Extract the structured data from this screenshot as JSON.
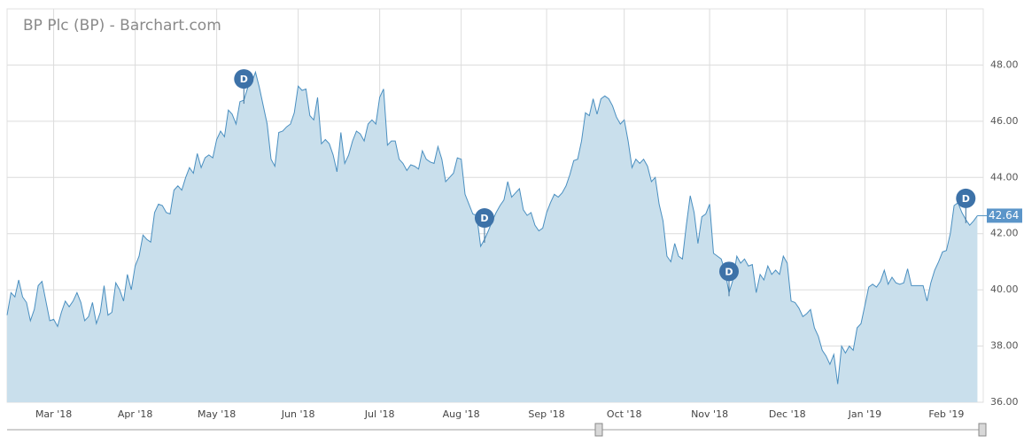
{
  "chart_data": {
    "type": "area",
    "title": "BP Plc (BP) - Barchart.com",
    "values": [
      39.1,
      39.9,
      39.75,
      40.35,
      39.75,
      39.55,
      38.9,
      39.3,
      40.15,
      40.3,
      39.6,
      38.9,
      38.95,
      38.7,
      39.2,
      39.6,
      39.4,
      39.6,
      39.9,
      39.55,
      38.9,
      39.05,
      39.55,
      38.8,
      39.2,
      40.15,
      39.1,
      39.2,
      40.25,
      40.0,
      39.6,
      40.55,
      40.0,
      40.85,
      41.2,
      41.95,
      41.8,
      41.7,
      42.75,
      43.05,
      43.0,
      42.75,
      42.7,
      43.55,
      43.7,
      43.55,
      44.0,
      44.35,
      44.15,
      44.85,
      44.35,
      44.7,
      44.8,
      44.7,
      45.35,
      45.65,
      45.45,
      46.4,
      46.25,
      45.9,
      46.7,
      46.75,
      47.2,
      47.35,
      47.75,
      47.2,
      46.55,
      45.9,
      44.65,
      44.4,
      45.6,
      45.65,
      45.8,
      45.9,
      46.3,
      47.25,
      47.1,
      47.15,
      46.2,
      46.05,
      46.85,
      45.2,
      45.35,
      45.2,
      44.8,
      44.2,
      45.6,
      44.5,
      44.8,
      45.3,
      45.65,
      45.55,
      45.3,
      45.9,
      46.05,
      45.9,
      46.85,
      47.15,
      45.15,
      45.3,
      45.3,
      44.65,
      44.5,
      44.25,
      44.45,
      44.4,
      44.3,
      44.95,
      44.65,
      44.55,
      44.5,
      45.1,
      44.65,
      43.85,
      44.0,
      44.15,
      44.7,
      44.65,
      43.4,
      43.05,
      42.7,
      42.65,
      41.55,
      41.8,
      42.1,
      42.45,
      42.75,
      43.0,
      43.2,
      43.85,
      43.3,
      43.45,
      43.6,
      42.85,
      42.65,
      42.75,
      42.3,
      42.1,
      42.2,
      42.75,
      43.1,
      43.4,
      43.3,
      43.45,
      43.7,
      44.1,
      44.6,
      44.65,
      45.3,
      46.3,
      46.2,
      46.8,
      46.25,
      46.8,
      46.9,
      46.8,
      46.55,
      46.15,
      45.9,
      46.05,
      45.3,
      44.35,
      44.65,
      44.5,
      44.65,
      44.4,
      43.85,
      44.0,
      43.05,
      42.45,
      41.2,
      41.0,
      41.65,
      41.2,
      41.1,
      42.3,
      43.35,
      42.75,
      41.65,
      42.6,
      42.7,
      43.05,
      41.3,
      41.2,
      41.1,
      40.65,
      39.9,
      40.35,
      41.2,
      40.95,
      41.1,
      40.85,
      40.9,
      39.9,
      40.55,
      40.35,
      40.85,
      40.55,
      40.7,
      40.55,
      41.2,
      40.95,
      39.6,
      39.55,
      39.35,
      39.05,
      39.15,
      39.3,
      38.65,
      38.35,
      37.85,
      37.65,
      37.35,
      37.7,
      36.65,
      38.0,
      37.75,
      38.0,
      37.85,
      38.65,
      38.8,
      39.45,
      40.1,
      40.2,
      40.1,
      40.3,
      40.7,
      40.2,
      40.45,
      40.25,
      40.2,
      40.25,
      40.75,
      40.15,
      40.15,
      40.15,
      40.15,
      39.6,
      40.25,
      40.7,
      41.0,
      41.35,
      41.4,
      42.0,
      43.0,
      43.1,
      42.75,
      42.5,
      42.3,
      42.45,
      42.64
    ],
    "color": "#4a8fc0",
    "fill": "#c9dfec",
    "last_price": 42.64,
    "annotations": [
      {
        "x": 61,
        "text": "D"
      },
      {
        "x": 123,
        "text": "D"
      },
      {
        "x": 186,
        "text": "D"
      },
      {
        "x": 247,
        "text": "D"
      }
    ],
    "xlim": [
      0,
      251.5
    ],
    "xticks": [
      {
        "value": 12,
        "label": "Mar '18"
      },
      {
        "value": 33,
        "label": "Apr '18"
      },
      {
        "value": 54,
        "label": "May '18"
      },
      {
        "value": 75,
        "label": "Jun '18"
      },
      {
        "value": 96,
        "label": "Jul '18"
      },
      {
        "value": 117,
        "label": "Aug '18"
      },
      {
        "value": 139,
        "label": "Sep '18"
      },
      {
        "value": 159,
        "label": "Oct '18"
      },
      {
        "value": 181,
        "label": "Nov '18"
      },
      {
        "value": 201,
        "label": "Dec '18"
      },
      {
        "value": 221,
        "label": "Jan '19"
      },
      {
        "value": 242,
        "label": "Feb '19"
      }
    ],
    "ylim": [
      36,
      50
    ],
    "yticks": [
      {
        "value": 36,
        "label": "36.00"
      },
      {
        "value": 38,
        "label": "38.00"
      },
      {
        "value": 40,
        "label": "40.00"
      },
      {
        "value": 42,
        "label": "42.00"
      },
      {
        "value": 44,
        "label": "44.00"
      },
      {
        "value": 46,
        "label": "46.00"
      },
      {
        "value": 48,
        "label": "48.00"
      }
    ],
    "grid": true
  }
}
